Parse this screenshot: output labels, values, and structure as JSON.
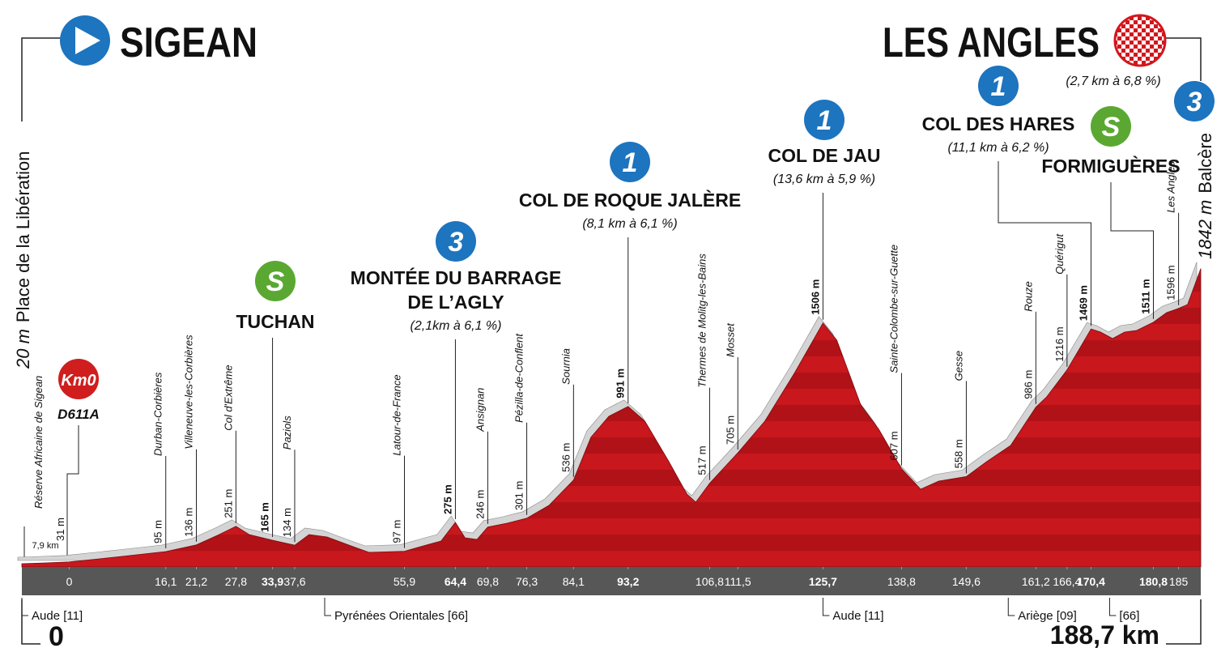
{
  "chart_data": {
    "type": "area",
    "start": {
      "name": "SIGEAN",
      "altitude_label": "20 m",
      "place": "Place de la Libération",
      "km_label": "0",
      "neutral_label": "7,9 km",
      "neutral_place": "Réserve Africaine de Sigean",
      "km0_badge": "Km0",
      "road": "D611A"
    },
    "finish": {
      "name": "LES ANGLES",
      "category": "3",
      "detail": "(2,7 km à 6,8 %)",
      "altitude_label": "1842 m",
      "place": "Balcère",
      "distance_label": "188,7 km"
    },
    "x": [
      -7.9,
      -4,
      0,
      5,
      10,
      16.1,
      21.2,
      25,
      27.8,
      30,
      33.9,
      37.6,
      40,
      43,
      47,
      50,
      55.9,
      60,
      62,
      64.4,
      66,
      68,
      69.8,
      73,
      76.3,
      80,
      84.1,
      87,
      90,
      93.2,
      96,
      100,
      103,
      104.5,
      106.8,
      111.5,
      116,
      121,
      125.7,
      128,
      132,
      135,
      138.8,
      142,
      145,
      149.6,
      153,
      157,
      161.2,
      163,
      166.4,
      170.4,
      172,
      174,
      176,
      178,
      180.8,
      183,
      185,
      186.5,
      188.7
    ],
    "values": [
      20,
      25,
      31,
      50,
      70,
      95,
      136,
      200,
      251,
      200,
      165,
      134,
      200,
      185,
      130,
      90,
      97,
      140,
      160,
      275,
      180,
      170,
      246,
      270,
      301,
      380,
      536,
      800,
      930,
      991,
      900,
      650,
      450,
      400,
      517,
      705,
      900,
      1200,
      1506,
      1400,
      1000,
      850,
      607,
      480,
      530,
      558,
      650,
      750,
      986,
      1050,
      1216,
      1469,
      1450,
      1410,
      1450,
      1460,
      1511,
      1570,
      1596,
      1620,
      1842
    ],
    "xlim": [
      -7.9,
      188.7
    ],
    "ylim": [
      0,
      2000
    ],
    "xticks": [
      0,
      {
        "value": 16.1,
        "label": "16,1"
      },
      {
        "value": 21.2,
        "label": "21,2"
      },
      {
        "value": 27.8,
        "label": "27,8"
      },
      {
        "value": 33.9,
        "label": "33,9"
      },
      {
        "value": 37.6,
        "label": "37,6"
      },
      {
        "value": 55.9,
        "label": "55,9"
      },
      {
        "value": 64.4,
        "label": "64,4"
      },
      {
        "value": 69.8,
        "label": "69,8"
      },
      {
        "value": 76.3,
        "label": "76,3"
      },
      {
        "value": 84.1,
        "label": "84,1"
      },
      {
        "value": 93.2,
        "label": "93,2"
      },
      {
        "value": 106.8,
        "label": "106,8"
      },
      {
        "value": 111.5,
        "label": "111,5"
      },
      {
        "value": 125.7,
        "label": "125,7"
      },
      {
        "value": 138.8,
        "label": "138,8"
      },
      {
        "value": 149.6,
        "label": "149,6"
      },
      {
        "value": 161.2,
        "label": "161,2"
      },
      {
        "value": 166.4,
        "label": "166,4"
      },
      {
        "value": 170.4,
        "label": "170,4"
      },
      {
        "value": 180.8,
        "label": "180,8"
      },
      185
    ],
    "markers": {
      "x": [
        0,
        16.1,
        21.2,
        27.8,
        33.9,
        37.6,
        55.9,
        64.4,
        69.8,
        76.3,
        84.1,
        93.2,
        106.8,
        111.5,
        125.7,
        138.8,
        149.6,
        161.2,
        166.4,
        170.4,
        180.8,
        185
      ],
      "values": [
        31,
        95,
        136,
        251,
        165,
        134,
        97,
        275,
        246,
        301,
        536,
        991,
        517,
        705,
        1506,
        607,
        558,
        986,
        1216,
        1469,
        1511,
        1596
      ],
      "value_labels": [
        "31 m",
        "95 m",
        "136 m",
        "251 m",
        "165 m",
        "134 m",
        "97 m",
        "275 m",
        "246 m",
        "301 m",
        "536 m",
        "991 m",
        "517 m",
        "705 m",
        "1506 m",
        "607 m",
        "558 m",
        "986 m",
        "1216 m",
        "1469 m",
        "1511 m",
        "1596 m"
      ],
      "names": [
        null,
        "Durban-Corbières",
        "Villeneuve-les-Corbières",
        "Col d'Extrême",
        null,
        "Paziols",
        "Latour-de-France",
        null,
        "Ansignan",
        "Pézilla-de-Conflent",
        "Sournia",
        null,
        "Thermes de Molitg-les-Bains",
        "Mosset",
        null,
        "Sainte-Colombe-sur-Guette",
        "Gesse",
        "Rouze",
        "Quérigut",
        null,
        null,
        "Les Angles"
      ]
    },
    "climbs": [
      {
        "category": "S",
        "name": [
          "TUCHAN"
        ],
        "detail": null,
        "x": 33.9,
        "altitude": 165
      },
      {
        "category": "3",
        "name": [
          "MONTÉE DU BARRAGE",
          "DE L’AGLY"
        ],
        "detail": "(2,1km à 6,1 %)",
        "x": 64.4,
        "altitude": 275
      },
      {
        "category": "1",
        "name": [
          "COL DE ROQUE JALÈRE"
        ],
        "detail": "(8,1 km à 6,1 %)",
        "x": 93.2,
        "altitude": 991
      },
      {
        "category": "1",
        "name": [
          "COL DE JAU"
        ],
        "detail": "(13,6 km à 5,9 %)",
        "x": 125.7,
        "altitude": 1506
      },
      {
        "category": "1",
        "name": [
          "COL DES HARES"
        ],
        "detail": "(11,1 km à 6,2 %)",
        "x": 170.4,
        "altitude": 1469
      },
      {
        "category": "S",
        "name": [
          "FORMIGUÈRES"
        ],
        "detail": null,
        "x": 180.8,
        "altitude": 1511
      }
    ],
    "badge_colors": {
      "S": "#5aa832",
      "1": "#1d74bf",
      "3": "#1d74bf"
    },
    "departments": [
      {
        "name": "Aude [11]",
        "x": -7.9
      },
      {
        "name": "Pyrénées Orientales [66]",
        "x": 42.6
      },
      {
        "name": "Aude [11]",
        "x": 125.7
      },
      {
        "name": "Ariège [09]",
        "x": 156.6
      },
      {
        "name": "[66]",
        "x": 173.5
      }
    ],
    "color": "#c4161c",
    "shadow_color": "#d4d4d4",
    "band_color": "#575757"
  }
}
